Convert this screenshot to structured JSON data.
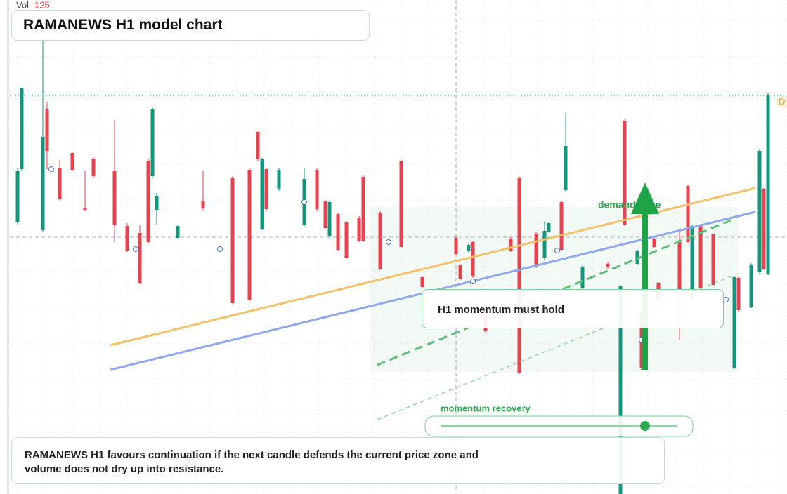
{
  "chart_data": {
    "type": "candlestick",
    "title": "RAMANEWS H1 model chart",
    "volume_label": "Vol",
    "volume_value": "125",
    "marker": "D",
    "annotations": {
      "zone": "demand zone",
      "hold": "H1 momentum must hold",
      "recovery": "momentum recovery"
    },
    "summary": [
      "RAMANEWS H1 favours continuation if the next candle defends the current price zone and",
      "volume does not dry up into resistance."
    ],
    "up_color": "#13977c",
    "down_color": "#e8414f",
    "xlim": [
      0,
      178
    ],
    "ylim": [
      0,
      704
    ],
    "x": [
      0,
      1,
      6,
      7,
      10,
      13,
      16,
      18,
      23,
      26,
      29,
      31,
      32,
      33,
      38,
      44,
      51,
      55,
      57,
      58,
      59,
      62,
      68,
      71,
      73,
      74,
      76,
      78,
      81,
      82,
      86,
      91,
      96,
      104,
      105,
      107,
      108,
      111,
      117,
      119,
      123,
      125,
      126,
      129,
      130,
      134,
      140,
      143,
      144,
      147,
      148,
      151,
      152,
      157,
      159,
      160,
      162,
      165,
      170,
      171,
      174,
      176,
      177,
      178
    ],
    "open": [
      388,
      463,
      376,
      548,
      464,
      486,
      408,
      478,
      461,
      382,
      372,
      475,
      453,
      405,
      365,
      417,
      451,
      462,
      516,
      378,
      463,
      434,
      383,
      462,
      417,
      367,
      399,
      387,
      394,
      452,
      401,
      474,
      309,
      365,
      326,
      346,
      359,
      263,
      364,
      451,
      371,
      336,
      374,
      416,
      433,
      294,
      328,
      0,
      532,
      328,
      257,
      364,
      300,
      359,
      439,
      278,
      383,
      370,
      180,
      308,
      267,
      316,
      434,
      314
    ],
    "high": [
      464,
      579,
      646,
      559,
      476,
      488,
      461,
      480,
      533,
      386,
      384,
      477,
      551,
      429,
      384,
      461,
      453,
      464,
      518,
      479,
      465,
      464,
      464,
      464,
      419,
      418,
      401,
      389,
      396,
      454,
      403,
      476,
      311,
      367,
      328,
      357,
      361,
      265,
      366,
      453,
      373,
      389,
      388,
      418,
      543,
      326,
      330,
      298,
      534,
      348,
      259,
      366,
      302,
      374,
      441,
      384,
      385,
      372,
      311,
      310,
      329,
      491,
      436,
      571
    ],
    "low": [
      384,
      461,
      374,
      463,
      418,
      460,
      404,
      451,
      359,
      345,
      299,
      357,
      451,
      384,
      363,
      405,
      270,
      275,
      475,
      376,
      404,
      432,
      381,
      404,
      377,
      365,
      346,
      335,
      359,
      359,
      319,
      350,
      293,
      340,
      305,
      344,
      308,
      230,
      345,
      171,
      322,
      334,
      372,
      346,
      431,
      292,
      321,
      0,
      382,
      326,
      177,
      350,
      277,
      220,
      357,
      276,
      292,
      296,
      178,
      260,
      265,
      314,
      319,
      312
    ],
    "close": [
      461,
      579,
      509,
      489,
      420,
      462,
      405,
      453,
      383,
      347,
      301,
      359,
      549,
      425,
      382,
      407,
      272,
      277,
      477,
      477,
      406,
      462,
      449,
      406,
      379,
      416,
      348,
      337,
      361,
      361,
      321,
      352,
      295,
      342,
      307,
      355,
      310,
      232,
      347,
      173,
      324,
      375,
      386,
      348,
      496,
      324,
      323,
      296,
      384,
      346,
      179,
      352,
      279,
      292,
      359,
      382,
      294,
      298,
      309,
      262,
      327,
      489,
      321,
      569
    ]
  }
}
